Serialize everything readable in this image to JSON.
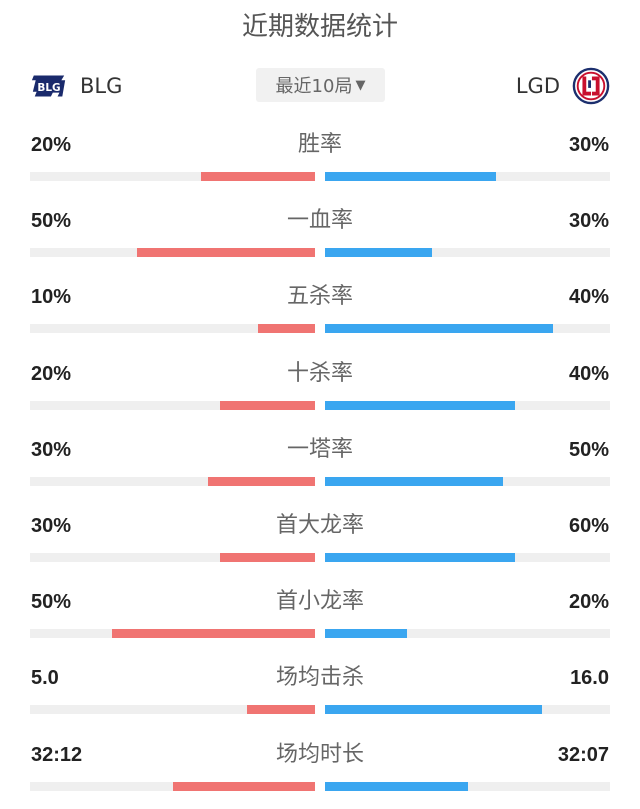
{
  "header": {
    "title": "近期数据统计",
    "filter_label": "最近10局",
    "filter_caret": "▼"
  },
  "teams": {
    "left": {
      "name": "BLG",
      "logo": "blg-logo",
      "color": "#f07472"
    },
    "right": {
      "name": "LGD",
      "logo": "lgd-logo",
      "color": "#3aa6f0"
    }
  },
  "stats": [
    {
      "label": "胜率",
      "left": "20%",
      "right": "30%",
      "left_fill": 0.4,
      "right_fill": 0.6
    },
    {
      "label": "一血率",
      "left": "50%",
      "right": "30%",
      "left_fill": 0.625,
      "right_fill": 0.375
    },
    {
      "label": "五杀率",
      "left": "10%",
      "right": "40%",
      "left_fill": 0.2,
      "right_fill": 0.8
    },
    {
      "label": "十杀率",
      "left": "20%",
      "right": "40%",
      "left_fill": 0.333,
      "right_fill": 0.667
    },
    {
      "label": "一塔率",
      "left": "30%",
      "right": "50%",
      "left_fill": 0.375,
      "right_fill": 0.625
    },
    {
      "label": "首大龙率",
      "left": "30%",
      "right": "60%",
      "left_fill": 0.333,
      "right_fill": 0.667
    },
    {
      "label": "首小龙率",
      "left": "50%",
      "right": "20%",
      "left_fill": 0.714,
      "right_fill": 0.286
    },
    {
      "label": "场均击杀",
      "left": "5.0",
      "right": "16.0",
      "left_fill": 0.238,
      "right_fill": 0.762
    },
    {
      "label": "场均时长",
      "left": "32:12",
      "right": "32:07",
      "left_fill": 0.5,
      "right_fill": 0.5
    }
  ]
}
